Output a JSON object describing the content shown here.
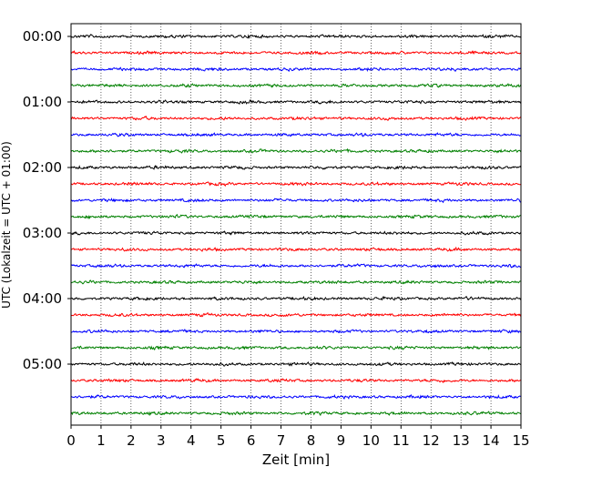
{
  "chart_data": {
    "type": "line",
    "xlabel": "Zeit  [min]",
    "ylabel": "UTC (Lokalzeit = UTC + 01:00)",
    "xlim": [
      0,
      15
    ],
    "x_ticks": [
      "0",
      "1",
      "2",
      "3",
      "4",
      "5",
      "6",
      "7",
      "8",
      "9",
      "10",
      "11",
      "12",
      "13",
      "14",
      "15"
    ],
    "y_tick_labels": [
      "00:00",
      "01:00",
      "02:00",
      "03:00",
      "04:00",
      "05:00"
    ],
    "trace_interval_minutes": 15,
    "trace_count": 24,
    "trace_colors": [
      "#000000",
      "#ff0000",
      "#0000ff",
      "#008000"
    ],
    "grid": {
      "vertical": true,
      "style": "dotted"
    }
  }
}
